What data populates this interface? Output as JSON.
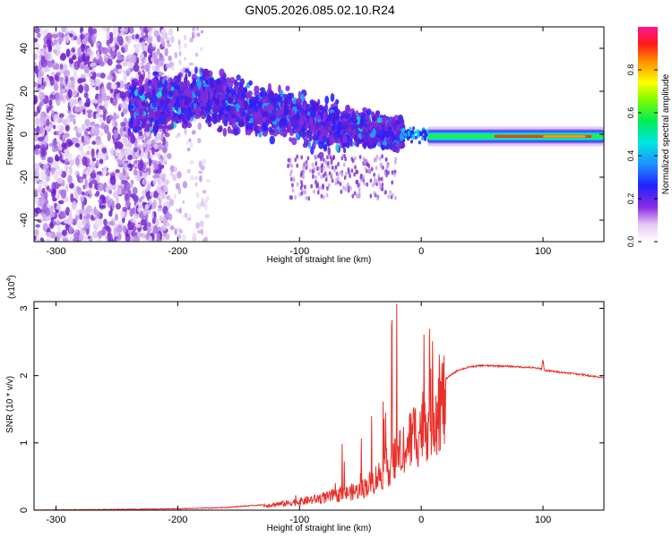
{
  "title": "GN05.2026.085.02.10.R24",
  "chart_data": [
    {
      "type": "heatmap",
      "xlabel": "Height of straight line (km)",
      "ylabel": "Frequency (Hz)",
      "xlim": [
        -318,
        150
      ],
      "ylim": [
        -50,
        50
      ],
      "xticks": [
        -300,
        -200,
        -100,
        0,
        100
      ],
      "yticks": [
        -40,
        -20,
        0,
        20,
        40
      ],
      "colorbar": {
        "label": "Normalized spectral amplitude",
        "range": [
          0,
          1
        ],
        "ticks": [
          0.0,
          0.2,
          0.4,
          0.6,
          0.8
        ]
      },
      "ridge": {
        "x": [
          -240,
          -200,
          -180,
          -150,
          -120,
          -100,
          -80,
          -60,
          -40,
          -20,
          0,
          50,
          100,
          150
        ],
        "y": [
          12,
          15,
          18,
          14,
          10,
          8,
          4,
          3,
          2,
          0,
          0,
          -1,
          -1,
          -1
        ]
      }
    },
    {
      "type": "line",
      "xlabel": "Height of straight line (km)",
      "ylabel": "SNR (10 * v/v)",
      "yscale_label": "(x10",
      "yscale_exp": "4",
      "yscale_close": ")",
      "xlim": [
        -318,
        150
      ],
      "ylim": [
        0,
        3.1
      ],
      "xticks": [
        -300,
        -200,
        -100,
        0,
        100
      ],
      "yticks": [
        0,
        1,
        2,
        3
      ],
      "series": [
        {
          "color": "#e8302a",
          "x": [
            -318,
            -250,
            -200,
            -160,
            -130,
            -110,
            -90,
            -70,
            -50,
            -40,
            -30,
            -20,
            -10,
            0,
            10,
            20,
            30,
            40,
            50,
            70,
            90,
            99,
            100,
            101,
            110,
            130,
            150
          ],
          "y": [
            0.0,
            0.01,
            0.02,
            0.04,
            0.08,
            0.12,
            0.18,
            0.25,
            0.35,
            0.5,
            0.7,
            0.9,
            1.2,
            1.45,
            1.75,
            1.95,
            2.08,
            2.13,
            2.15,
            2.14,
            2.12,
            2.1,
            2.25,
            2.08,
            2.06,
            2.02,
            1.97
          ]
        }
      ]
    }
  ]
}
